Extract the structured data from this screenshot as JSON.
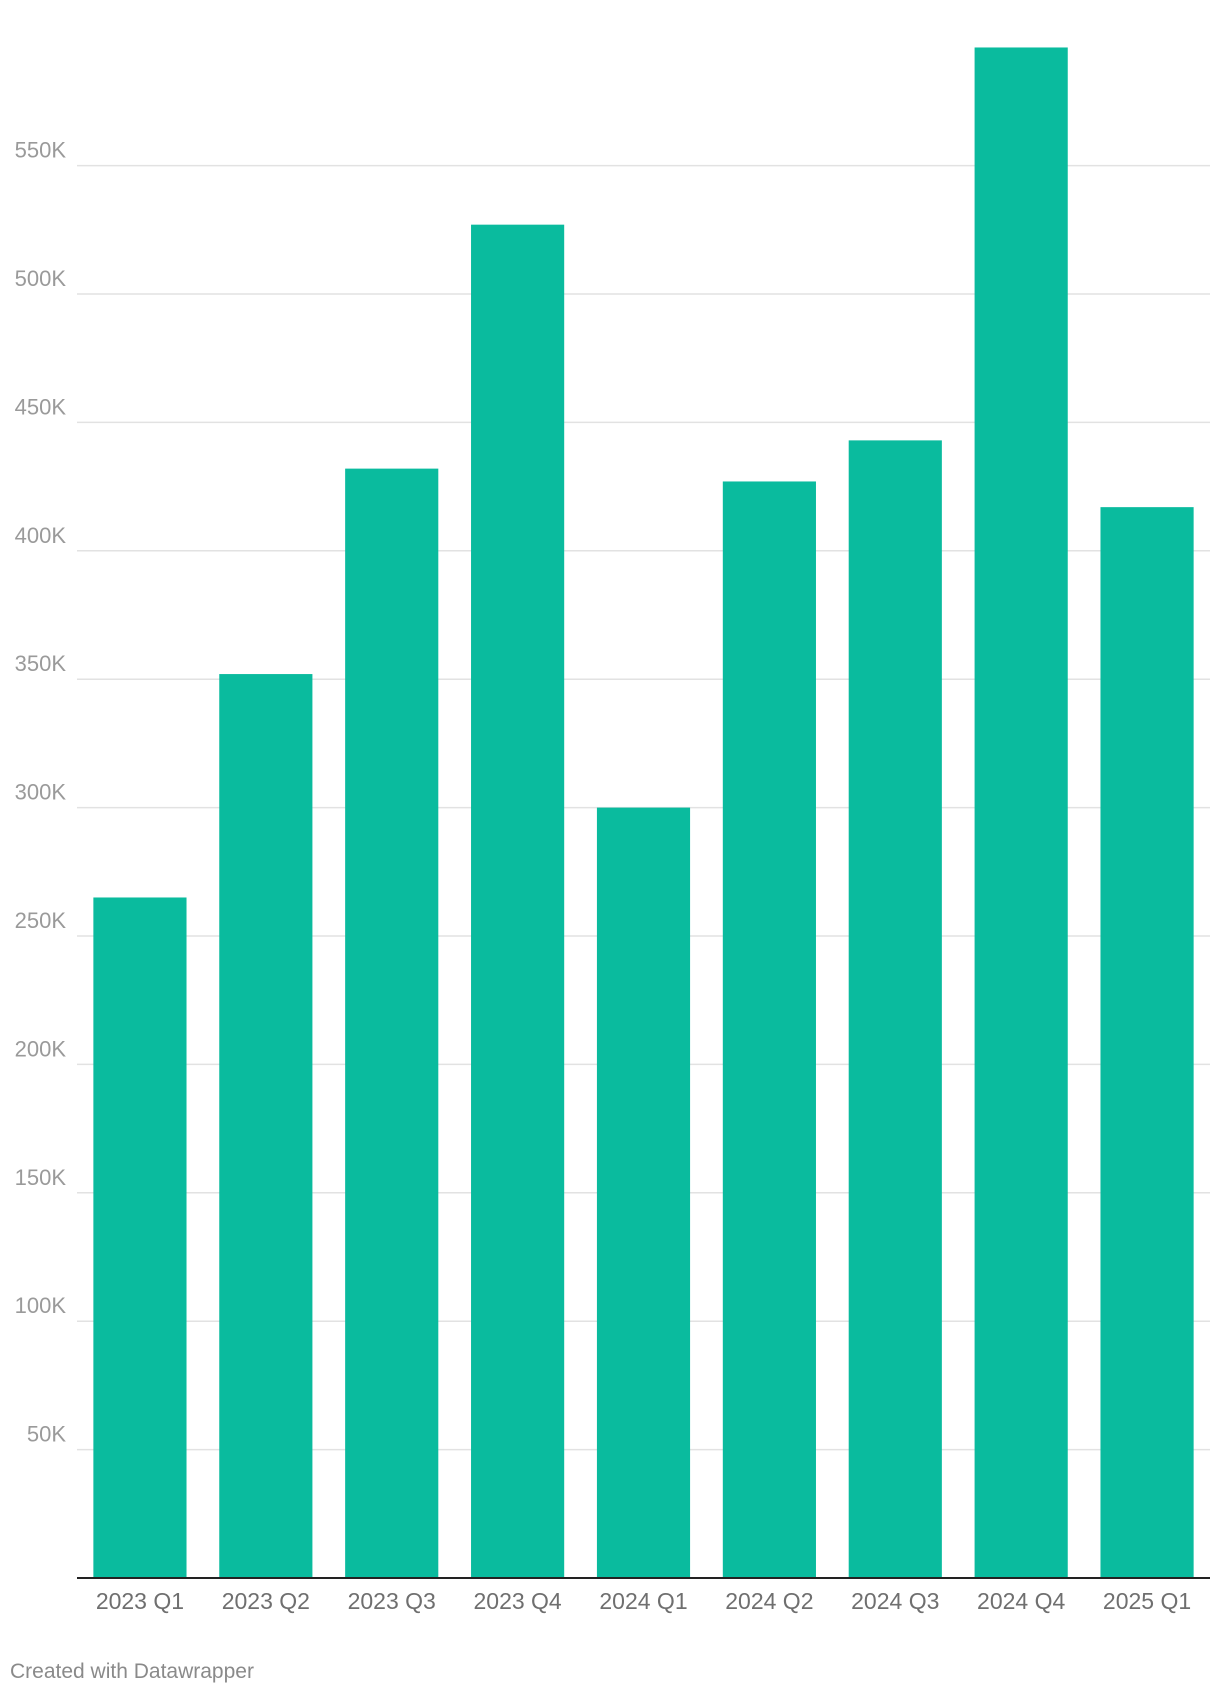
{
  "chart_data": {
    "type": "bar",
    "categories": [
      "2023 Q1",
      "2023 Q2",
      "2023 Q3",
      "2023 Q4",
      "2024 Q1",
      "2024 Q2",
      "2024 Q3",
      "2024 Q4",
      "2025 Q1"
    ],
    "values": [
      265000,
      352000,
      432000,
      527000,
      300000,
      427000,
      443000,
      596000,
      417000
    ],
    "title": "",
    "xlabel": "",
    "ylabel": "",
    "ylim": [
      0,
      600000
    ],
    "y_ticks": [
      50000,
      100000,
      150000,
      200000,
      250000,
      300000,
      350000,
      400000,
      450000,
      500000,
      550000
    ],
    "y_tick_labels": [
      "50K",
      "100K",
      "150K",
      "200K",
      "250K",
      "300K",
      "350K",
      "400K",
      "450K",
      "500K",
      "550K"
    ],
    "grid": true,
    "legend": "none",
    "bar_color": "#0abb9e"
  },
  "footer": {
    "credit": "Created with Datawrapper"
  }
}
